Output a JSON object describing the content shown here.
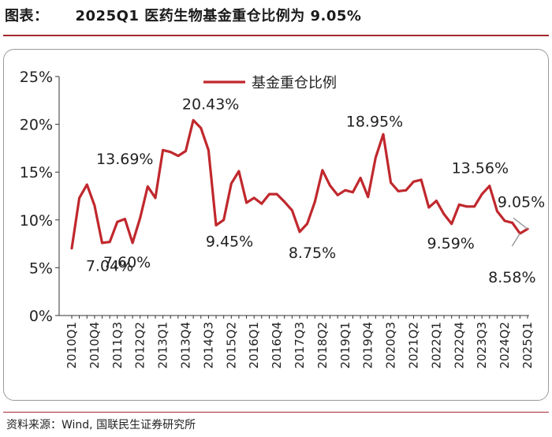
{
  "header": {
    "label": "图表：",
    "title": "2025Q1 医药生物基金重仓比例为 9.05%"
  },
  "footer": {
    "source_label": "资料来源：",
    "source_text": "Wind, 国联民生证券研究所"
  },
  "colors": {
    "series": "#c0282d",
    "title_rule": "#a6292e"
  },
  "chart_data": {
    "type": "line",
    "title": "",
    "xlabel": "",
    "ylabel": "",
    "ylim": [
      0,
      25
    ],
    "yticks": [
      "0%",
      "5%",
      "10%",
      "15%",
      "20%",
      "25%"
    ],
    "grid": false,
    "legend": "top-center",
    "x": [
      "2010Q1",
      "2010Q2",
      "2010Q3",
      "2010Q4",
      "2011Q1",
      "2011Q2",
      "2011Q3",
      "2011Q4",
      "2012Q1",
      "2012Q2",
      "2012Q3",
      "2012Q4",
      "2013Q1",
      "2013Q2",
      "2013Q3",
      "2013Q4",
      "2014Q1",
      "2014Q2",
      "2014Q3",
      "2014Q4",
      "2015Q1",
      "2015Q2",
      "2015Q3",
      "2015Q4",
      "2016Q1",
      "2016Q2",
      "2016Q3",
      "2016Q4",
      "2017Q1",
      "2017Q2",
      "2017Q3",
      "2017Q4",
      "2018Q1",
      "2018Q2",
      "2018Q3",
      "2018Q4",
      "2019Q1",
      "2019Q2",
      "2019Q3",
      "2019Q4",
      "2020Q1",
      "2020Q2",
      "2020Q3",
      "2020Q4",
      "2021Q1",
      "2021Q2",
      "2021Q3",
      "2021Q4",
      "2022Q1",
      "2022Q2",
      "2022Q3",
      "2022Q4",
      "2023Q1",
      "2023Q2",
      "2023Q3",
      "2023Q4",
      "2024Q1",
      "2024Q2",
      "2024Q3",
      "2024Q4",
      "2025Q1"
    ],
    "xtick_labels": [
      "2010Q1",
      "2010Q4",
      "2011Q3",
      "2012Q2",
      "2013Q1",
      "2013Q4",
      "2014Q3",
      "2015Q2",
      "2016Q1",
      "2016Q4",
      "2017Q3",
      "2018Q2",
      "2019Q1",
      "2019Q4",
      "2020Q3",
      "2021Q2",
      "2022Q1",
      "2022Q4",
      "2023Q3",
      "2024Q2",
      "2025Q1"
    ],
    "series": [
      {
        "name": "基金重仓比例",
        "values": [
          7.04,
          12.3,
          13.69,
          11.5,
          7.6,
          7.7,
          9.8,
          10.1,
          7.6,
          10.2,
          13.5,
          12.3,
          17.3,
          17.1,
          16.7,
          17.2,
          20.43,
          19.6,
          17.3,
          9.45,
          10.0,
          13.8,
          15.1,
          11.8,
          12.3,
          11.7,
          12.7,
          12.7,
          11.9,
          11.0,
          8.75,
          9.6,
          11.9,
          15.2,
          13.6,
          12.6,
          13.1,
          12.9,
          14.4,
          12.4,
          16.5,
          18.95,
          13.9,
          13.0,
          13.1,
          14.0,
          14.2,
          11.3,
          12.0,
          10.6,
          9.59,
          11.6,
          11.4,
          11.4,
          12.7,
          13.56,
          10.9,
          9.9,
          9.7,
          8.58,
          9.05
        ]
      }
    ],
    "annotations": [
      {
        "index": 0,
        "text": "7.04%"
      },
      {
        "index": 2,
        "text": "13.69%"
      },
      {
        "index": 8,
        "text": "7.60%"
      },
      {
        "index": 16,
        "text": "20.43%"
      },
      {
        "index": 19,
        "text": "9.45%"
      },
      {
        "index": 30,
        "text": "8.75%"
      },
      {
        "index": 41,
        "text": "18.95%"
      },
      {
        "index": 50,
        "text": "9.59%"
      },
      {
        "index": 55,
        "text": "13.56%"
      },
      {
        "index": 60,
        "text": "9.05%"
      },
      {
        "index": 59,
        "text": "8.58%"
      }
    ]
  }
}
